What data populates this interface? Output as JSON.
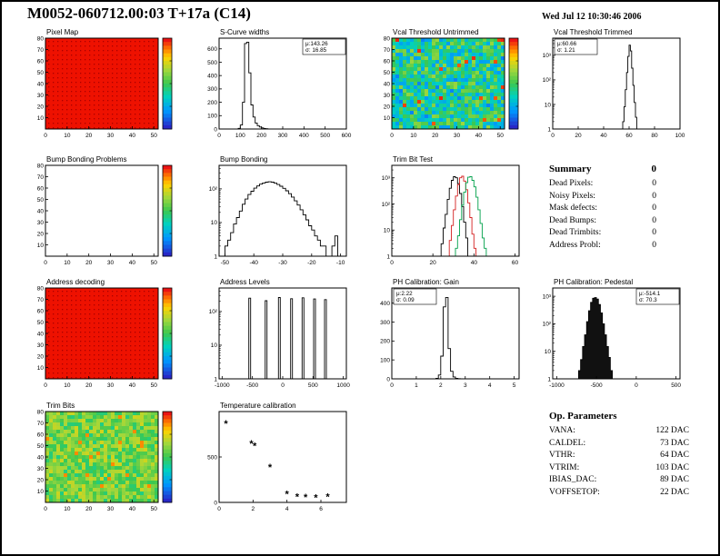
{
  "page": {
    "title": "M0052-060712.00:03 T+17a  (C14)",
    "datetime": "Wed Jul 12 10:30:46 2006"
  },
  "summary": {
    "title": "Summary",
    "total": "0",
    "items": [
      {
        "label": "Dead Pixels:",
        "value": "0"
      },
      {
        "label": "Noisy Pixels:",
        "value": "0"
      },
      {
        "label": "Mask defects:",
        "value": "0"
      },
      {
        "label": "Dead Bumps:",
        "value": "0"
      },
      {
        "label": "Dead Trimbits:",
        "value": "0"
      },
      {
        "label": "Address Probl:",
        "value": "0"
      }
    ]
  },
  "op_parameters": {
    "title": "Op. Parameters",
    "items": [
      {
        "label": "VANA:",
        "value": "122 DAC"
      },
      {
        "label": "CALDEL:",
        "value": "73 DAC"
      },
      {
        "label": "VTHR:",
        "value": "64 DAC"
      },
      {
        "label": "VTRIM:",
        "value": "103 DAC"
      },
      {
        "label": "IBIAS_DAC:",
        "value": "89 DAC"
      },
      {
        "label": "VOFFSETOP:",
        "value": "22 DAC"
      }
    ]
  },
  "chart_data": [
    {
      "id": "pixel-map",
      "type": "heatmap",
      "title": "Pixel Map",
      "xlim": [
        0,
        52
      ],
      "ylim": [
        0,
        80
      ],
      "xticks": [
        0,
        10,
        20,
        30,
        40,
        50
      ],
      "yticks": [
        10,
        20,
        30,
        40,
        50,
        60,
        70,
        80
      ],
      "style": "solid-red",
      "colorbar": true
    },
    {
      "id": "s-curve-widths",
      "type": "hist",
      "title": "S-Curve widths",
      "xlim": [
        0,
        600
      ],
      "ylim": [
        0,
        680
      ],
      "logy": false,
      "xticks": [
        0,
        100,
        200,
        300,
        400,
        500,
        600
      ],
      "yticks": [
        0,
        100,
        200,
        300,
        400,
        500,
        600
      ],
      "bin_width": 10,
      "bins": [
        [
          90,
          5
        ],
        [
          100,
          30
        ],
        [
          110,
          200
        ],
        [
          120,
          640
        ],
        [
          130,
          650
        ],
        [
          140,
          420
        ],
        [
          150,
          180
        ],
        [
          160,
          90
        ],
        [
          170,
          45
        ],
        [
          180,
          25
        ],
        [
          190,
          15
        ],
        [
          200,
          8
        ],
        [
          210,
          4
        ],
        [
          220,
          2
        ]
      ],
      "stats": {
        "mu": "143.26",
        "sigma": "16.85",
        "pos": "tr"
      }
    },
    {
      "id": "vcal-untrimmed",
      "type": "heatmap",
      "title": "Vcal Threshold Untrimmed",
      "xlim": [
        0,
        52
      ],
      "ylim": [
        0,
        80
      ],
      "xticks": [
        0,
        10,
        20,
        30,
        40,
        50
      ],
      "yticks": [
        10,
        20,
        30,
        40,
        50,
        60,
        70,
        80
      ],
      "style": "noise-mid",
      "colorbar": true
    },
    {
      "id": "vcal-trimmed",
      "type": "hist",
      "title": "Vcal Threshold Trimmed",
      "xlim": [
        0,
        100
      ],
      "ylim": [
        1,
        5000
      ],
      "logy": true,
      "xticks": [
        0,
        20,
        40,
        60,
        80,
        100
      ],
      "yticks": [
        1,
        10,
        100,
        1000
      ],
      "bin_width": 1,
      "bins": [
        [
          55,
          2
        ],
        [
          56,
          8
        ],
        [
          57,
          40
        ],
        [
          58,
          200
        ],
        [
          59,
          900
        ],
        [
          60,
          2600
        ],
        [
          61,
          1500
        ],
        [
          62,
          300
        ],
        [
          63,
          60
        ],
        [
          64,
          12
        ],
        [
          65,
          3
        ]
      ],
      "stats": {
        "mu": "60.66",
        "sigma": "1.21",
        "pos": "tl"
      }
    },
    {
      "id": "bump-bonding-problems",
      "type": "heatmap",
      "title": "Bump Bonding Problems",
      "xlim": [
        0,
        52
      ],
      "ylim": [
        0,
        80
      ],
      "xticks": [
        0,
        10,
        20,
        30,
        40,
        50
      ],
      "yticks": [
        10,
        20,
        30,
        40,
        50,
        60,
        70,
        80
      ],
      "style": "empty",
      "colorbar": true
    },
    {
      "id": "bump-bonding",
      "type": "hist",
      "title": "Bump Bonding",
      "xlim": [
        -52,
        -8
      ],
      "ylim": [
        1,
        500
      ],
      "logy": true,
      "xticks": [
        -50,
        -40,
        -30,
        -20,
        -10
      ],
      "yticks": [
        1,
        10,
        100
      ],
      "bin_width": 1,
      "bins": [
        [
          -50,
          2
        ],
        [
          -49,
          3
        ],
        [
          -48,
          5
        ],
        [
          -47,
          9
        ],
        [
          -46,
          14
        ],
        [
          -45,
          22
        ],
        [
          -44,
          35
        ],
        [
          -43,
          50
        ],
        [
          -42,
          68
        ],
        [
          -41,
          85
        ],
        [
          -40,
          105
        ],
        [
          -39,
          122
        ],
        [
          -38,
          138
        ],
        [
          -37,
          150
        ],
        [
          -36,
          158
        ],
        [
          -35,
          162
        ],
        [
          -34,
          158
        ],
        [
          -33,
          148
        ],
        [
          -32,
          135
        ],
        [
          -31,
          120
        ],
        [
          -30,
          104
        ],
        [
          -29,
          88
        ],
        [
          -28,
          72
        ],
        [
          -27,
          57
        ],
        [
          -26,
          44
        ],
        [
          -25,
          33
        ],
        [
          -24,
          24
        ],
        [
          -23,
          17
        ],
        [
          -22,
          12
        ],
        [
          -21,
          8
        ],
        [
          -20,
          6
        ],
        [
          -19,
          4
        ],
        [
          -18,
          3
        ],
        [
          -17,
          2
        ],
        [
          -16,
          2
        ],
        [
          -15,
          1
        ],
        [
          -14,
          1
        ],
        [
          -13,
          2
        ],
        [
          -12,
          4
        ]
      ]
    },
    {
      "id": "trim-bit-test",
      "type": "multi-hist",
      "title": "Trim Bit Test",
      "xlim": [
        0,
        62
      ],
      "ylim": [
        1,
        3000
      ],
      "logy": true,
      "xticks": [
        0,
        20,
        40,
        60
      ],
      "yticks": [
        1,
        10,
        100,
        1000
      ],
      "bin_width": 1,
      "series": [
        {
          "name": "trim-black",
          "color": "#000000",
          "bins": [
            [
              23,
              1
            ],
            [
              24,
              3
            ],
            [
              25,
              12
            ],
            [
              26,
              40
            ],
            [
              27,
              150
            ],
            [
              28,
              400
            ],
            [
              29,
              800
            ],
            [
              30,
              1100
            ],
            [
              31,
              1000
            ],
            [
              32,
              600
            ],
            [
              33,
              250
            ],
            [
              34,
              80
            ],
            [
              35,
              20
            ],
            [
              36,
              5
            ],
            [
              37,
              1
            ]
          ]
        },
        {
          "name": "trim-red",
          "color": "#d42020",
          "bins": [
            [
              27,
              1
            ],
            [
              28,
              4
            ],
            [
              29,
              15
            ],
            [
              30,
              60
            ],
            [
              31,
              200
            ],
            [
              32,
              550
            ],
            [
              33,
              1000
            ],
            [
              34,
              1150
            ],
            [
              35,
              750
            ],
            [
              36,
              350
            ],
            [
              37,
              110
            ],
            [
              38,
              30
            ],
            [
              39,
              7
            ],
            [
              40,
              2
            ]
          ]
        },
        {
          "name": "trim-green",
          "color": "#00a04a",
          "bins": [
            [
              31,
              2
            ],
            [
              32,
              6
            ],
            [
              33,
              25
            ],
            [
              34,
              90
            ],
            [
              35,
              280
            ],
            [
              36,
              650
            ],
            [
              37,
              1050
            ],
            [
              38,
              1100
            ],
            [
              39,
              800
            ],
            [
              40,
              450
            ],
            [
              41,
              180
            ],
            [
              42,
              60
            ],
            [
              43,
              18
            ],
            [
              44,
              5
            ],
            [
              45,
              2
            ]
          ]
        }
      ]
    },
    {
      "id": "address-decoding",
      "type": "heatmap",
      "title": "Address decoding",
      "xlim": [
        0,
        52
      ],
      "ylim": [
        0,
        80
      ],
      "xticks": [
        0,
        10,
        20,
        30,
        40,
        50
      ],
      "yticks": [
        10,
        20,
        30,
        40,
        50,
        60,
        70,
        80
      ],
      "style": "solid-red",
      "colorbar": true
    },
    {
      "id": "address-levels",
      "type": "spikes",
      "title": "Address Levels",
      "xlim": [
        -1050,
        1050
      ],
      "ylim": [
        1,
        500
      ],
      "logy": true,
      "xticks": [
        -1000,
        -500,
        0,
        500,
        1000
      ],
      "yticks": [
        1,
        10,
        100
      ],
      "bin_width": 30,
      "bins": [
        [
          -560,
          250
        ],
        [
          -290,
          210
        ],
        [
          -70,
          260
        ],
        [
          130,
          240
        ],
        [
          320,
          255
        ],
        [
          510,
          235
        ],
        [
          690,
          225
        ]
      ]
    },
    {
      "id": "ph-gain",
      "type": "hist",
      "title": "PH Calibration: Gain",
      "xlim": [
        0,
        5.2
      ],
      "ylim": [
        0,
        480
      ],
      "logy": false,
      "xticks": [
        0,
        1,
        2,
        3,
        4,
        5
      ],
      "yticks": [
        0,
        100,
        200,
        300,
        400
      ],
      "bin_width": 0.1,
      "bins": [
        [
          1.8,
          3
        ],
        [
          1.9,
          20
        ],
        [
          2.0,
          120
        ],
        [
          2.1,
          380
        ],
        [
          2.2,
          430
        ],
        [
          2.3,
          160
        ],
        [
          2.4,
          40
        ],
        [
          2.5,
          10
        ],
        [
          2.6,
          3
        ],
        [
          2.7,
          1
        ]
      ],
      "stats": {
        "mu": "2.22",
        "sigma": "0.09",
        "pos": "tl"
      }
    },
    {
      "id": "ph-pedestal",
      "type": "hist",
      "title": "PH Calibration: Pedestal",
      "xlim": [
        -1050,
        550
      ],
      "ylim": [
        1,
        2000
      ],
      "logy": true,
      "xticks": [
        -1000,
        -500,
        0,
        500
      ],
      "yticks": [
        1,
        10,
        100,
        1000
      ],
      "bin_width": 25,
      "fill": "#111111",
      "bins": [
        [
          -725,
          2
        ],
        [
          -700,
          5
        ],
        [
          -675,
          15
        ],
        [
          -650,
          40
        ],
        [
          -625,
          120
        ],
        [
          -600,
          300
        ],
        [
          -575,
          600
        ],
        [
          -550,
          850
        ],
        [
          -525,
          900
        ],
        [
          -500,
          800
        ],
        [
          -475,
          500
        ],
        [
          -450,
          250
        ],
        [
          -425,
          100
        ],
        [
          -400,
          40
        ],
        [
          -375,
          15
        ],
        [
          -350,
          6
        ],
        [
          -325,
          2
        ]
      ],
      "stats": {
        "mu": "-514.1",
        "sigma": "70.3",
        "pos": "tr"
      }
    },
    {
      "id": "trim-bits",
      "type": "heatmap",
      "title": "Trim Bits",
      "xlim": [
        0,
        52
      ],
      "ylim": [
        0,
        80
      ],
      "xticks": [
        0,
        10,
        20,
        30,
        40,
        50
      ],
      "yticks": [
        10,
        20,
        30,
        40,
        50,
        60,
        70,
        80
      ],
      "style": "noise-green",
      "colorbar": true
    },
    {
      "id": "temp-calibration",
      "type": "scatter",
      "title": "Temperature calibration",
      "xlim": [
        0,
        7.5
      ],
      "ylim": [
        0,
        1000
      ],
      "xticks": [
        0,
        2,
        4,
        6
      ],
      "yticks": [
        0,
        500
      ],
      "points": [
        [
          0.4,
          870
        ],
        [
          1.9,
          650
        ],
        [
          2.1,
          625
        ],
        [
          3.0,
          390
        ],
        [
          4.0,
          95
        ],
        [
          4.6,
          65
        ],
        [
          5.1,
          60
        ],
        [
          5.7,
          55
        ],
        [
          6.4,
          65
        ]
      ],
      "marker": "*"
    }
  ]
}
